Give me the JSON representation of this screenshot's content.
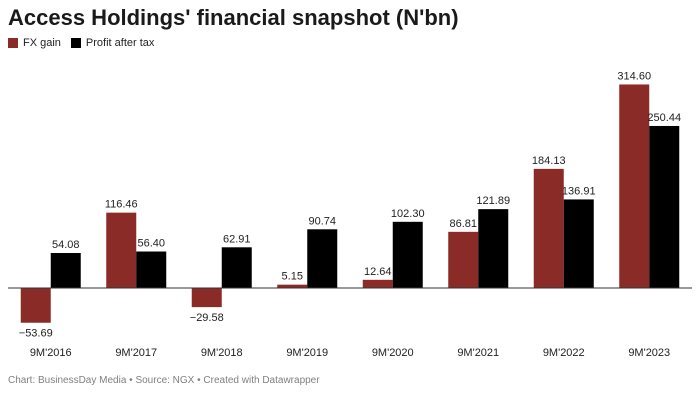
{
  "chart_data": {
    "type": "bar",
    "title": "Access Holdings' financial snapshot (N'bn)",
    "categories": [
      "9M'2016",
      "9M'2017",
      "9M'2018",
      "9M'2019",
      "9M'2020",
      "9M'2021",
      "9M'2022",
      "9M'2023"
    ],
    "series": [
      {
        "name": "FX gain",
        "color": "#8b2b27",
        "values": [
          -53.69,
          116.46,
          -29.58,
          5.15,
          12.64,
          86.81,
          184.13,
          314.6
        ],
        "labels": [
          "−53.69",
          "116.46",
          "−29.58",
          "5.15",
          "12.64",
          "86.81",
          "184.13",
          "314.60"
        ]
      },
      {
        "name": "Profit after tax",
        "color": "#000000",
        "values": [
          54.08,
          56.4,
          62.91,
          90.74,
          102.3,
          121.89,
          136.91,
          250.44
        ],
        "labels": [
          "54.08",
          "56.40",
          "62.91",
          "90.74",
          "102.30",
          "121.89",
          "136.91",
          "250.44"
        ]
      }
    ],
    "ylim": [
      -60,
      320
    ],
    "grid": false,
    "legend_position": "top-left"
  },
  "footer": "Chart: BusinessDay Media • Source: NGX • Created with Datawrapper"
}
